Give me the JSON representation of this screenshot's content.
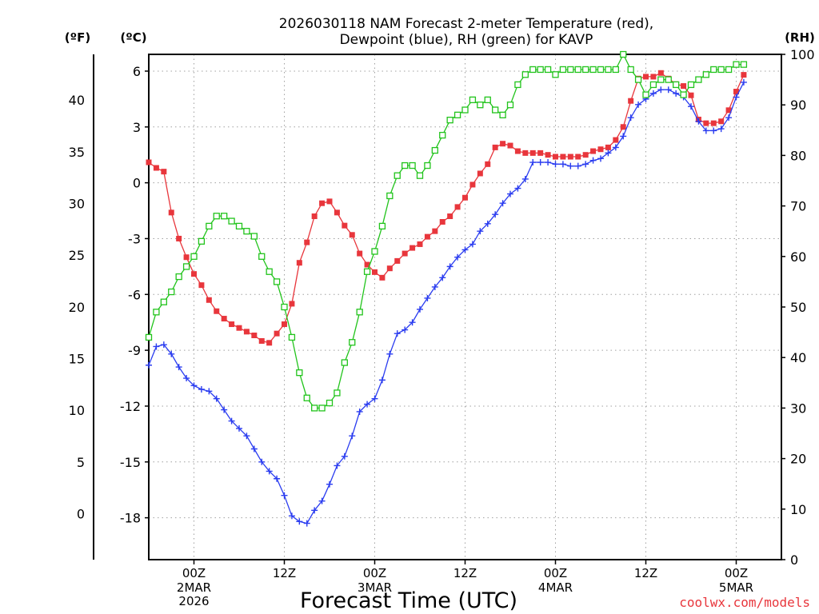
{
  "chart_data": {
    "type": "line",
    "title": "2026030118 NAM Forecast 2-meter Temperature (red),",
    "title_line2": "Dewpoint (blue), RH (green) for KAVP",
    "xlabel": "Forecast Time (UTC)",
    "credit": "coolwx.com/models",
    "units": {
      "fahrenheit": "(ºF)",
      "celsius": "(ºC)",
      "rh": "(RH)"
    },
    "x_unit": "forecast hour from 2026-03-01 18Z",
    "xlim": [
      18,
      102
    ],
    "y_celsius_lim": [
      -20.25,
      6.9
    ],
    "y_rh_lim": [
      0,
      100
    ],
    "celsius_ticks": [
      "6",
      "3",
      "0",
      "-3",
      "-6",
      "-9",
      "-12",
      "-15",
      "-18"
    ],
    "celsius_tick_values": [
      6,
      3,
      0,
      -3,
      -6,
      -9,
      -12,
      -15,
      -18
    ],
    "fahrenheit_ticks": [
      "40",
      "35",
      "30",
      "25",
      "20",
      "15",
      "10",
      "5",
      "0"
    ],
    "fahrenheit_tick_values": [
      40,
      35,
      30,
      25,
      20,
      15,
      10,
      5,
      0
    ],
    "rh_ticks": [
      "100",
      "90",
      "80",
      "70",
      "60",
      "50",
      "40",
      "30",
      "20",
      "10",
      "0"
    ],
    "rh_tick_values": [
      100,
      90,
      80,
      70,
      60,
      50,
      40,
      30,
      20,
      10,
      0
    ],
    "x_ticks": [
      {
        "hour": 24,
        "label": "00Z",
        "sub": "2MAR",
        "sub2": "2026"
      },
      {
        "hour": 36,
        "label": "12Z",
        "sub": "",
        "sub2": ""
      },
      {
        "hour": 48,
        "label": "00Z",
        "sub": "3MAR",
        "sub2": ""
      },
      {
        "hour": 60,
        "label": "12Z",
        "sub": "",
        "sub2": ""
      },
      {
        "hour": 72,
        "label": "00Z",
        "sub": "4MAR",
        "sub2": ""
      },
      {
        "hour": 84,
        "label": "12Z",
        "sub": "",
        "sub2": ""
      },
      {
        "hour": 96,
        "label": "00Z",
        "sub": "5MAR",
        "sub2": ""
      }
    ],
    "series": [
      {
        "name": "2-meter Temperature (°C)",
        "color": "#e8363c",
        "marker": "filled-square",
        "start_hour": 18,
        "step_hours": 1,
        "values": [
          1.1,
          0.8,
          0.6,
          -1.6,
          -3.0,
          -4.0,
          -4.9,
          -5.5,
          -6.3,
          -6.9,
          -7.3,
          -7.6,
          -7.8,
          -8.0,
          -8.2,
          -8.5,
          -8.6,
          -8.1,
          -7.6,
          -6.5,
          -4.3,
          -3.2,
          -1.8,
          -1.1,
          -1.0,
          -1.6,
          -2.3,
          -2.8,
          -3.8,
          -4.4,
          -4.8,
          -5.1,
          -4.6,
          -4.2,
          -3.8,
          -3.5,
          -3.3,
          -2.9,
          -2.6,
          -2.1,
          -1.8,
          -1.3,
          -0.8,
          -0.1,
          0.5,
          1.0,
          1.9,
          2.1,
          2.0,
          1.7,
          1.6,
          1.6,
          1.6,
          1.5,
          1.4,
          1.4,
          1.4,
          1.4,
          1.5,
          1.7,
          1.8,
          1.9,
          2.3,
          3.0,
          4.4,
          5.6,
          5.7,
          5.7,
          5.9,
          5.6,
          5.3,
          5.2,
          4.7,
          3.4,
          3.2,
          3.2,
          3.3,
          3.9,
          4.9,
          5.8
        ]
      },
      {
        "name": "Dewpoint (°C)",
        "color": "#2a3cf0",
        "marker": "plus",
        "start_hour": 18,
        "step_hours": 1,
        "values": [
          -9.8,
          -8.8,
          -8.7,
          -9.2,
          -9.9,
          -10.5,
          -10.9,
          -11.1,
          -11.2,
          -11.6,
          -12.2,
          -12.8,
          -13.2,
          -13.6,
          -14.3,
          -15.0,
          -15.5,
          -15.9,
          -16.8,
          -17.9,
          -18.2,
          -18.3,
          -17.6,
          -17.1,
          -16.2,
          -15.2,
          -14.7,
          -13.6,
          -12.3,
          -11.9,
          -11.6,
          -10.6,
          -9.2,
          -8.1,
          -7.9,
          -7.5,
          -6.8,
          -6.2,
          -5.6,
          -5.1,
          -4.5,
          -4.0,
          -3.6,
          -3.3,
          -2.6,
          -2.2,
          -1.7,
          -1.1,
          -0.6,
          -0.3,
          0.2,
          1.1,
          1.1,
          1.1,
          1.0,
          1.0,
          0.9,
          0.9,
          1.0,
          1.2,
          1.3,
          1.6,
          1.9,
          2.5,
          3.5,
          4.2,
          4.5,
          4.8,
          5.0,
          5.0,
          4.8,
          4.6,
          4.1,
          3.3,
          2.8,
          2.8,
          2.9,
          3.5,
          4.6,
          5.4
        ]
      },
      {
        "name": "RH (%)",
        "color": "#22c41c",
        "marker": "open-square",
        "start_hour": 18,
        "step_hours": 1,
        "values": [
          44,
          49,
          51,
          53,
          56,
          58,
          60,
          63,
          66,
          68,
          68,
          67,
          66,
          65,
          64,
          60,
          57,
          55,
          50,
          44,
          37,
          32,
          30,
          30,
          31,
          33,
          39,
          43,
          49,
          57,
          61,
          66,
          72,
          76,
          78,
          78,
          76,
          78,
          81,
          84,
          87,
          88,
          89,
          91,
          90,
          91,
          89,
          88,
          90,
          94,
          96,
          97,
          97,
          97,
          96,
          97,
          97,
          97,
          97,
          97,
          97,
          97,
          97,
          100,
          97,
          95,
          92,
          94,
          95,
          95,
          94,
          92,
          94,
          95,
          96,
          97,
          97,
          97,
          98,
          98
        ]
      }
    ]
  }
}
